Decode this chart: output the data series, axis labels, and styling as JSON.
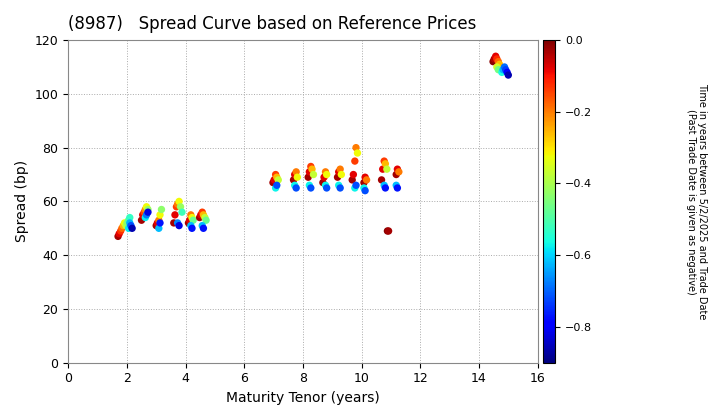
{
  "title": "(8987)   Spread Curve based on Reference Prices",
  "xlabel": "Maturity Tenor (years)",
  "ylabel": "Spread (bp)",
  "xlim": [
    0,
    16
  ],
  "ylim": [
    0,
    120
  ],
  "xticks": [
    0,
    2,
    4,
    6,
    8,
    10,
    12,
    14,
    16
  ],
  "yticks": [
    0,
    20,
    40,
    60,
    80,
    100,
    120
  ],
  "cbar_vmin": -0.9,
  "cbar_vmax": 0.0,
  "cbar_ticks": [
    0.0,
    -0.2,
    -0.4,
    -0.6,
    -0.8
  ],
  "colorbar_label": "Time in years between 5/2/2025 and Trade Date\n(Past Trade Date is given as negative)",
  "clusters": [
    {
      "x": [
        1.7,
        1.74,
        1.79,
        1.83,
        1.88,
        1.92,
        1.97,
        2.01,
        2.06,
        2.1,
        2.06,
        2.1,
        2.14,
        2.18
      ],
      "y": [
        47,
        48,
        49,
        50,
        51,
        52,
        51,
        52,
        53,
        54,
        50,
        52,
        51,
        50
      ],
      "c": [
        -0.03,
        -0.08,
        -0.13,
        -0.18,
        -0.25,
        -0.32,
        -0.38,
        -0.43,
        -0.48,
        -0.53,
        -0.58,
        -0.63,
        -0.72,
        -0.86
      ]
    },
    {
      "x": [
        2.5,
        2.54,
        2.59,
        2.63,
        2.67,
        2.72,
        2.63,
        2.67,
        2.72
      ],
      "y": [
        53,
        55,
        56,
        57,
        58,
        57,
        54,
        55,
        56
      ],
      "c": [
        -0.03,
        -0.08,
        -0.15,
        -0.22,
        -0.32,
        -0.42,
        -0.58,
        -0.68,
        -0.82
      ]
    },
    {
      "x": [
        3.0,
        3.04,
        3.09,
        3.13,
        3.18,
        3.09,
        3.13
      ],
      "y": [
        51,
        52,
        53,
        55,
        57,
        50,
        52
      ],
      "c": [
        -0.03,
        -0.08,
        -0.2,
        -0.32,
        -0.43,
        -0.62,
        -0.77
      ]
    },
    {
      "x": [
        3.6,
        3.64,
        3.69,
        3.73,
        3.78,
        3.83,
        3.88,
        3.73,
        3.78
      ],
      "y": [
        52,
        55,
        58,
        59,
        60,
        58,
        56,
        52,
        51
      ],
      "c": [
        -0.03,
        -0.08,
        -0.14,
        -0.2,
        -0.32,
        -0.42,
        -0.52,
        -0.67,
        -0.82
      ]
    },
    {
      "x": [
        4.1,
        4.14,
        4.18,
        4.22,
        4.26,
        4.18,
        4.22
      ],
      "y": [
        52,
        53,
        55,
        54,
        53,
        51,
        50
      ],
      "c": [
        -0.03,
        -0.08,
        -0.2,
        -0.32,
        -0.47,
        -0.62,
        -0.77
      ]
    },
    {
      "x": [
        4.48,
        4.52,
        4.57,
        4.61,
        4.66,
        4.7,
        4.57,
        4.61
      ],
      "y": [
        54,
        55,
        56,
        55,
        54,
        53,
        51,
        50
      ],
      "c": [
        -0.03,
        -0.08,
        -0.14,
        -0.26,
        -0.37,
        -0.47,
        -0.62,
        -0.77
      ]
    },
    {
      "x": [
        6.98,
        7.02,
        7.07,
        7.11,
        7.16,
        7.07,
        7.11
      ],
      "y": [
        67,
        68,
        70,
        69,
        68,
        65,
        66
      ],
      "c": [
        -0.03,
        -0.08,
        -0.14,
        -0.26,
        -0.37,
        -0.57,
        -0.72
      ]
    },
    {
      "x": [
        7.68,
        7.72,
        7.77,
        7.81,
        7.72,
        7.77
      ],
      "y": [
        68,
        70,
        71,
        69,
        66,
        65
      ],
      "c": [
        -0.03,
        -0.08,
        -0.2,
        -0.32,
        -0.57,
        -0.72
      ]
    },
    {
      "x": [
        8.18,
        8.22,
        8.27,
        8.31,
        8.36,
        8.22,
        8.27
      ],
      "y": [
        69,
        71,
        73,
        72,
        70,
        66,
        65
      ],
      "c": [
        -0.03,
        -0.08,
        -0.14,
        -0.26,
        -0.37,
        -0.57,
        -0.72
      ]
    },
    {
      "x": [
        8.68,
        8.72,
        8.77,
        8.81,
        8.77,
        8.81
      ],
      "y": [
        67,
        69,
        71,
        70,
        66,
        65
      ],
      "c": [
        -0.03,
        -0.08,
        -0.2,
        -0.32,
        -0.57,
        -0.72
      ]
    },
    {
      "x": [
        9.18,
        9.22,
        9.27,
        9.31,
        9.22,
        9.27
      ],
      "y": [
        69,
        71,
        72,
        70,
        66,
        65
      ],
      "c": [
        -0.03,
        -0.08,
        -0.2,
        -0.32,
        -0.57,
        -0.72
      ]
    },
    {
      "x": [
        9.68,
        9.72,
        9.77,
        9.81,
        9.86,
        9.77,
        9.81
      ],
      "y": [
        68,
        70,
        75,
        80,
        78,
        65,
        66
      ],
      "c": [
        -0.03,
        -0.08,
        -0.14,
        -0.2,
        -0.32,
        -0.57,
        -0.72
      ]
    },
    {
      "x": [
        10.08,
        10.12,
        10.17,
        10.08,
        10.12
      ],
      "y": [
        67,
        69,
        68,
        65,
        64
      ],
      "c": [
        -0.03,
        -0.08,
        -0.2,
        -0.57,
        -0.72
      ]
    },
    {
      "x": [
        10.68,
        10.72,
        10.77,
        10.81,
        10.86,
        10.77,
        10.81
      ],
      "y": [
        68,
        72,
        75,
        74,
        72,
        66,
        65
      ],
      "c": [
        -0.03,
        -0.08,
        -0.14,
        -0.26,
        -0.37,
        -0.62,
        -0.77
      ]
    },
    {
      "x": [
        11.18,
        11.22,
        11.27,
        11.18,
        11.22
      ],
      "y": [
        70,
        72,
        71,
        66,
        65
      ],
      "c": [
        -0.03,
        -0.08,
        -0.2,
        -0.62,
        -0.77
      ]
    },
    {
      "x": [
        10.88,
        10.92
      ],
      "y": [
        49,
        49
      ],
      "c": [
        -0.01,
        -0.03
      ]
    },
    {
      "x": [
        14.48,
        14.52,
        14.57,
        14.61,
        14.66,
        14.7,
        14.61,
        14.66,
        14.78,
        14.82,
        14.87,
        14.91,
        14.96,
        15.0
      ],
      "y": [
        112,
        113,
        114,
        113,
        112,
        111,
        110,
        109,
        108,
        109,
        110,
        109,
        108,
        107
      ],
      "c": [
        -0.01,
        -0.04,
        -0.08,
        -0.12,
        -0.18,
        -0.26,
        -0.36,
        -0.46,
        -0.56,
        -0.63,
        -0.69,
        -0.73,
        -0.79,
        -0.86
      ]
    }
  ],
  "background_color": "#ffffff",
  "grid_color": "#aaaaaa",
  "marker_size": 28
}
